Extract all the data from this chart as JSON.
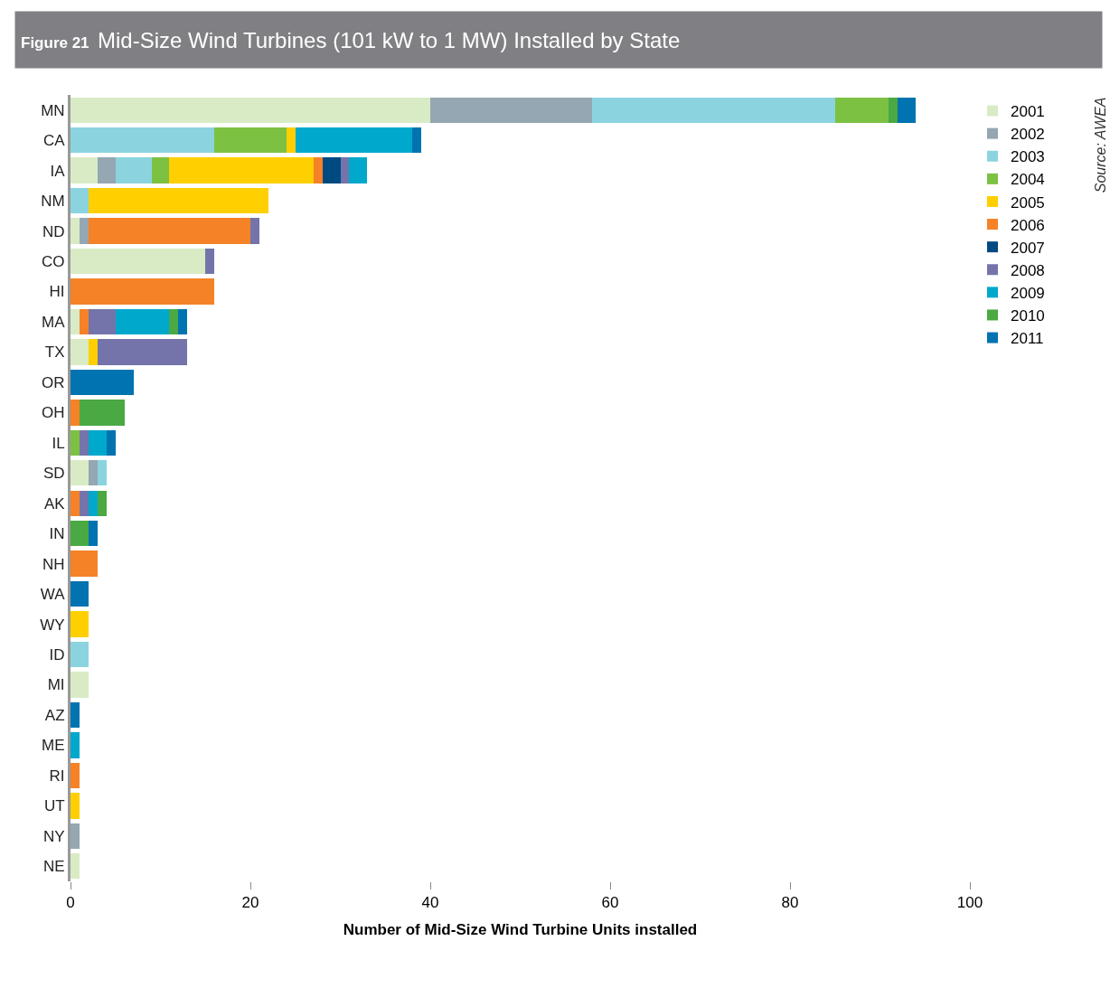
{
  "chart_data": {
    "type": "bar",
    "orientation": "horizontal",
    "stacked": true,
    "title": "Figure 21",
    "subtitle": "Mid-Size Wind Turbines (101 kW to 1 MW) Installed by State",
    "xlabel": "Number of Mid-Size Wind Turbine Units installed",
    "annotations": [
      "Source: AWEA"
    ],
    "categories": [
      "MN",
      "CA",
      "IA",
      "NM",
      "ND",
      "CO",
      "HI",
      "MA",
      "TX",
      "OR",
      "OH",
      "IL",
      "SD",
      "AK",
      "IN",
      "NH",
      "WA",
      "WY",
      "ID",
      "MI",
      "AZ",
      "ME",
      "RI",
      "UT",
      "NY",
      "NE"
    ],
    "series": [
      {
        "name": "2001",
        "color": "#d9ebc5",
        "values": [
          40,
          null,
          3,
          null,
          1,
          15,
          null,
          1,
          2,
          null,
          null,
          null,
          2,
          null,
          null,
          null,
          null,
          null,
          null,
          2,
          null,
          null,
          null,
          null,
          null,
          1
        ]
      },
      {
        "name": "2002",
        "color": "#94a7b2",
        "values": [
          18,
          null,
          2,
          null,
          1,
          null,
          null,
          null,
          null,
          null,
          null,
          null,
          1,
          null,
          null,
          null,
          null,
          null,
          null,
          null,
          null,
          null,
          null,
          null,
          1,
          null
        ]
      },
      {
        "name": "2003",
        "color": "#8bd4df",
        "values": [
          27,
          16,
          4,
          2,
          null,
          null,
          null,
          null,
          null,
          null,
          null,
          null,
          1,
          null,
          null,
          null,
          null,
          null,
          2,
          null,
          null,
          null,
          null,
          null,
          null,
          null
        ]
      },
      {
        "name": "2004",
        "color": "#7dc143",
        "values": [
          6,
          8,
          2,
          null,
          null,
          null,
          null,
          null,
          null,
          null,
          null,
          1,
          null,
          null,
          null,
          null,
          null,
          null,
          null,
          null,
          null,
          null,
          null,
          null,
          null,
          null
        ]
      },
      {
        "name": "2005",
        "color": "#ffcf00",
        "values": [
          null,
          1,
          16,
          20,
          null,
          null,
          null,
          null,
          1,
          null,
          null,
          null,
          null,
          null,
          null,
          null,
          null,
          2,
          null,
          null,
          null,
          null,
          null,
          1,
          null,
          null
        ]
      },
      {
        "name": "2006",
        "color": "#f58226",
        "values": [
          null,
          null,
          1,
          null,
          18,
          null,
          16,
          1,
          null,
          null,
          1,
          null,
          null,
          1,
          null,
          3,
          null,
          null,
          null,
          null,
          null,
          null,
          1,
          null,
          null,
          null
        ]
      },
      {
        "name": "2007",
        "color": "#004a82",
        "values": [
          null,
          null,
          2,
          null,
          null,
          null,
          null,
          null,
          null,
          null,
          null,
          null,
          null,
          null,
          null,
          null,
          null,
          null,
          null,
          null,
          null,
          null,
          null,
          null,
          null,
          null
        ]
      },
      {
        "name": "2008",
        "color": "#7474aa",
        "values": [
          null,
          null,
          1,
          null,
          1,
          1,
          null,
          3,
          10,
          null,
          null,
          1,
          null,
          1,
          null,
          null,
          null,
          null,
          null,
          null,
          null,
          null,
          null,
          null,
          null,
          null
        ]
      },
      {
        "name": "2009",
        "color": "#00a8cc",
        "values": [
          null,
          13,
          2,
          null,
          null,
          null,
          null,
          6,
          null,
          null,
          null,
          2,
          null,
          1,
          null,
          null,
          null,
          null,
          null,
          null,
          null,
          1,
          null,
          null,
          null,
          null
        ]
      },
      {
        "name": "2010",
        "color": "#4aa942",
        "values": [
          1,
          null,
          null,
          null,
          null,
          null,
          null,
          1,
          null,
          null,
          5,
          null,
          null,
          1,
          2,
          null,
          null,
          null,
          null,
          null,
          null,
          null,
          null,
          null,
          null,
          null
        ]
      },
      {
        "name": "2011",
        "color": "#0073b0",
        "values": [
          2,
          1,
          null,
          null,
          null,
          null,
          null,
          1,
          null,
          7,
          null,
          1,
          null,
          null,
          1,
          null,
          2,
          null,
          null,
          null,
          1,
          null,
          null,
          null,
          null,
          null
        ]
      }
    ],
    "xlim": [
      0,
      100
    ],
    "xticks": [
      0,
      20,
      40,
      60,
      80,
      100
    ],
    "legend": "top right"
  }
}
